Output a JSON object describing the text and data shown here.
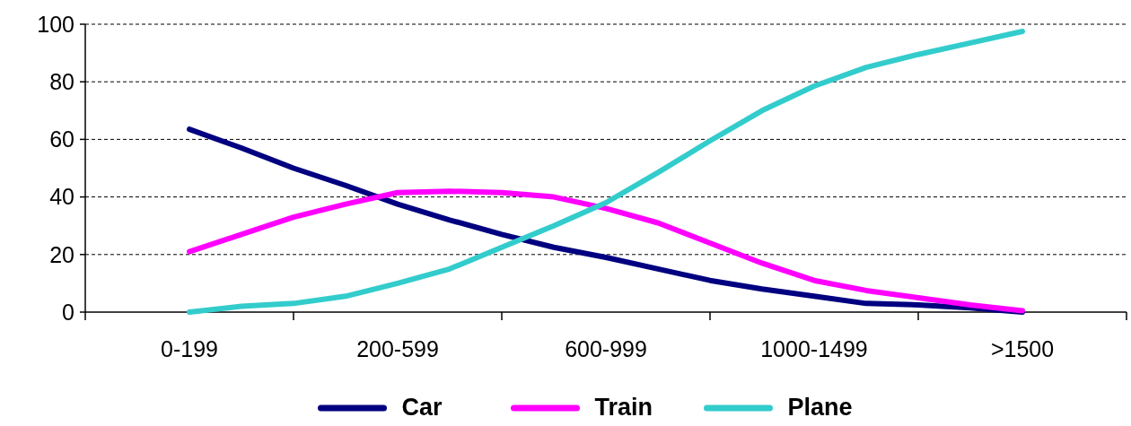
{
  "chart_data": {
    "type": "line",
    "categories": [
      "0-199",
      null,
      null,
      null,
      "200-599",
      null,
      null,
      null,
      "600-999",
      null,
      null,
      null,
      "1000-1499",
      null,
      null,
      null,
      ">1500"
    ],
    "ylim": [
      0,
      100
    ],
    "yticks": [
      0,
      20,
      40,
      60,
      80,
      100
    ],
    "grid": "y",
    "legend": "bottom",
    "marker": "none",
    "line_style": "solid",
    "series": [
      {
        "name": "Car",
        "color": "#000080",
        "values": [
          63.5,
          57,
          50,
          44,
          37.5,
          32,
          27,
          22.5,
          19,
          15,
          11,
          8,
          5.5,
          3,
          2.5,
          1.5,
          0
        ]
      },
      {
        "name": "Train",
        "color": "#ff00ff",
        "values": [
          21,
          27,
          33,
          37.5,
          41.5,
          42,
          41.5,
          40,
          36,
          31,
          24,
          17,
          11,
          7.5,
          5,
          2.5,
          0.5
        ]
      },
      {
        "name": "Plane",
        "color": "#33cccc",
        "values": [
          0,
          2,
          3,
          5.5,
          10,
          15,
          22.5,
          30,
          38,
          48.5,
          59.5,
          70,
          78.5,
          85,
          89.5,
          93.5,
          97.5
        ]
      }
    ]
  }
}
